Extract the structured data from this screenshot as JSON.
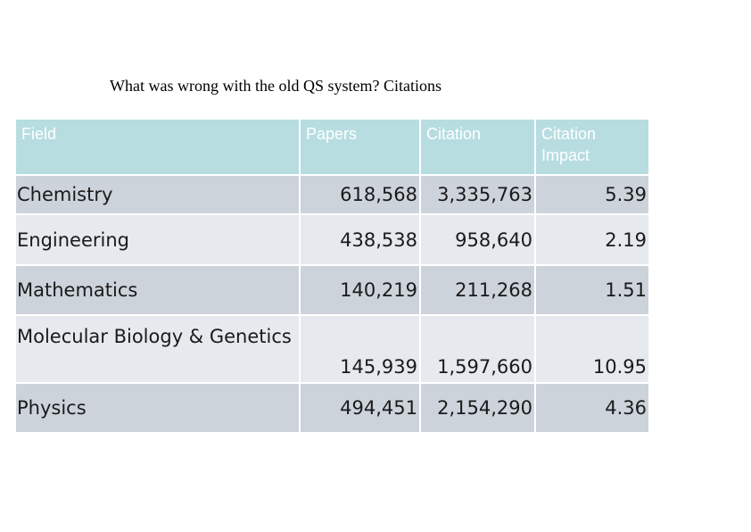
{
  "title": "What was wrong with the old QS system? Citations",
  "table": {
    "headers": [
      "Field",
      "Papers",
      "Citation",
      "Citation Impact"
    ],
    "rows": [
      {
        "field": "Chemistry",
        "papers": "618,568",
        "citation": "3,335,763",
        "impact": "5.39"
      },
      {
        "field": "Engineering",
        "papers": "438,538",
        "citation": "958,640",
        "impact": "2.19"
      },
      {
        "field": "Mathematics",
        "papers": "140,219",
        "citation": "211,268",
        "impact": "1.51"
      },
      {
        "field": "Molecular Biology & Genetics",
        "papers": "145,939",
        "citation": "1,597,660",
        "impact": "10.95"
      },
      {
        "field": "Physics",
        "papers": "494,451",
        "citation": "2,154,290",
        "impact": "4.36"
      }
    ]
  },
  "colors": {
    "header_bg": "#b7dde1",
    "row_dark": "#cdd3db",
    "row_light": "#e6e9ed"
  }
}
